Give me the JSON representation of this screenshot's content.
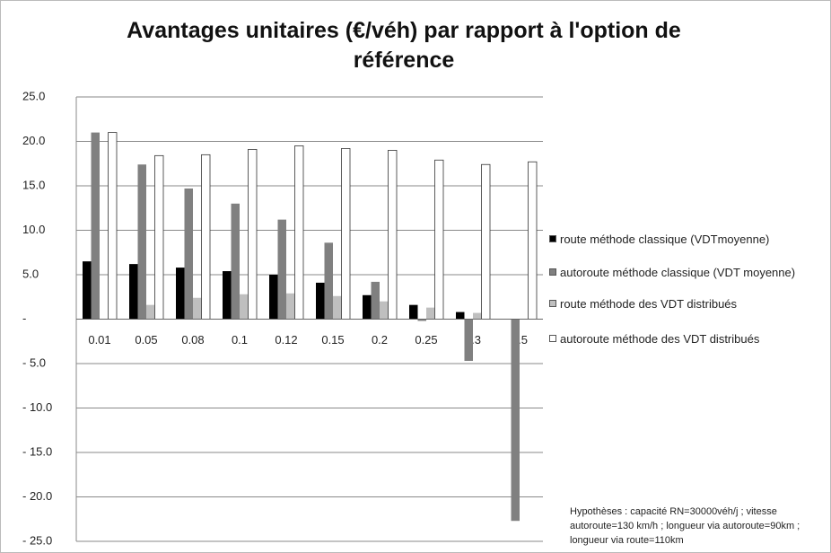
{
  "chart_data": {
    "type": "bar",
    "title": "Avantages unitaires (€/véh) par rapport à l'option de référence",
    "categories": [
      "0.01",
      "0.05",
      "0.08",
      "0.1",
      "0.12",
      "0.15",
      "0.2",
      "0.25",
      "0.3",
      "0.5"
    ],
    "series": [
      {
        "name": "route méthode classique (VDTmoyenne)",
        "color": "#000000",
        "values": [
          6.5,
          6.2,
          5.8,
          5.4,
          5.0,
          4.1,
          2.7,
          1.6,
          0.8,
          0
        ]
      },
      {
        "name": "autoroute méthode classique (VDT moyenne)",
        "color": "#808080",
        "values": [
          21.0,
          17.4,
          14.7,
          13.0,
          11.2,
          8.6,
          4.2,
          -0.2,
          -4.7,
          -22.7
        ]
      },
      {
        "name": "route méthode des VDT distribués",
        "color": "#bfbfbf",
        "values": [
          0,
          1.6,
          2.4,
          2.8,
          2.9,
          2.6,
          2.0,
          1.3,
          0.7,
          0
        ]
      },
      {
        "name": "autoroute méthode des VDT distribués",
        "color": "#ffffff",
        "values": [
          21.0,
          18.4,
          18.5,
          19.1,
          19.5,
          19.2,
          19.0,
          17.9,
          17.4,
          17.7
        ]
      }
    ],
    "ylim": [
      -25,
      25
    ],
    "yticks": [
      {
        "value": 25,
        "label": "25.0"
      },
      {
        "value": 20,
        "label": "20.0"
      },
      {
        "value": 15,
        "label": "15.0"
      },
      {
        "value": 10,
        "label": "10.0"
      },
      {
        "value": 5,
        "label": "5.0"
      },
      {
        "value": 0,
        "label": "-"
      },
      {
        "value": -5,
        "label": "- 5.0"
      },
      {
        "value": -10,
        "label": "- 10.0"
      },
      {
        "value": -15,
        "label": "- 15.0"
      },
      {
        "value": -20,
        "label": "- 20.0"
      },
      {
        "value": -25,
        "label": "- 25.0"
      }
    ],
    "grid": true,
    "legend": "right",
    "annotation": "Hypothèses : capacité RN=30000véh/j ; vitesse autoroute=130 km/h ; longueur via autoroute=90km ; longueur via route=110km"
  }
}
